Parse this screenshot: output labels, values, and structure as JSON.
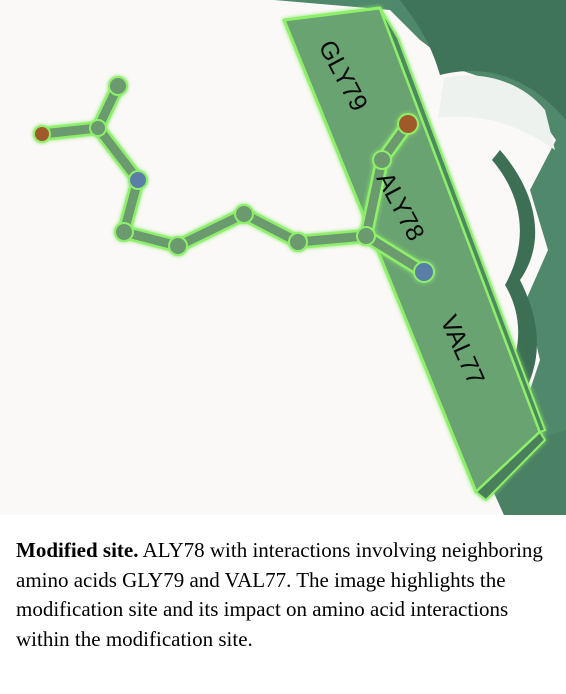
{
  "figure": {
    "residue_labels": {
      "gly79": "GLY79",
      "aly78": "ALY78",
      "val77": "VAL77"
    },
    "colors": {
      "background": "#fbf9f8",
      "ribbon_dark": "#4c8468",
      "ribbon_light": "#6aa372",
      "highlight_glow": "#8ef06a",
      "stick": "#6b9a6e",
      "nitrogen": "#5a7fa6",
      "oxygen": "#a05a2a"
    }
  },
  "caption": {
    "heading": "Modified site.",
    "body": "ALY78 with interactions involving neighboring amino acids GLY79 and VAL77. The image highlights the modification site and its impact on amino acid interactions within the modification site."
  }
}
